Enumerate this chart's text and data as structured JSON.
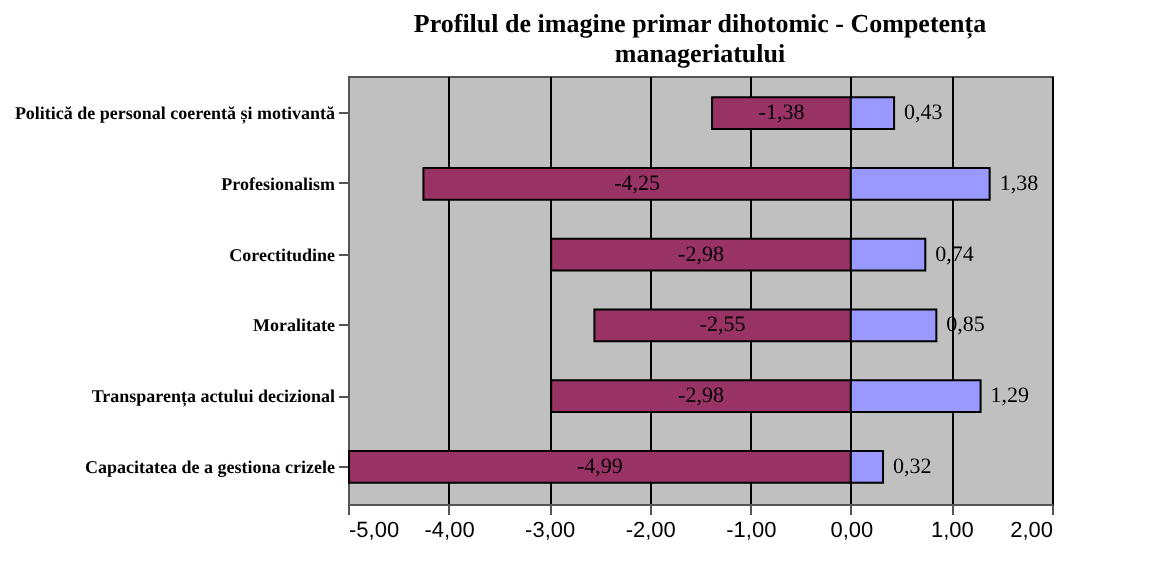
{
  "chart_data": {
    "type": "bar",
    "orientation": "horizontal",
    "stacked": true,
    "title": "Profilul de imagine primar dihotomic - Competența manageriatului",
    "categories": [
      "Politică de personal coerentă și motivantă",
      "Profesionalism",
      "Corectitudine",
      "Moralitate",
      "Transparența actului decizional",
      "Capacitatea de a gestiona crizele"
    ],
    "series": [
      {
        "color": "#993366",
        "values": [
          -1.38,
          -4.25,
          -2.98,
          -2.55,
          -2.98,
          -4.99
        ],
        "value_labels": [
          "-1,38",
          "-4,25",
          "-2,98",
          "-2,55",
          "-2,98",
          "-4,99"
        ]
      },
      {
        "color": "#9999ff",
        "values": [
          0.43,
          1.38,
          0.74,
          0.85,
          1.29,
          0.32
        ],
        "value_labels": [
          "0,43",
          "1,38",
          "0,74",
          "0,85",
          "1,29",
          "0,32"
        ]
      }
    ],
    "xlim": [
      -5,
      2
    ],
    "xticks": [
      {
        "value": -5,
        "label": "-5,00"
      },
      {
        "value": -4,
        "label": "-4,00"
      },
      {
        "value": -3,
        "label": "-3,00"
      },
      {
        "value": -2,
        "label": "-2,00"
      },
      {
        "value": -1,
        "label": "-1,00"
      },
      {
        "value": 0,
        "label": "0,00"
      },
      {
        "value": 1,
        "label": "1,00"
      },
      {
        "value": 2,
        "label": "2,00"
      }
    ],
    "grid": "x",
    "legend": false
  }
}
